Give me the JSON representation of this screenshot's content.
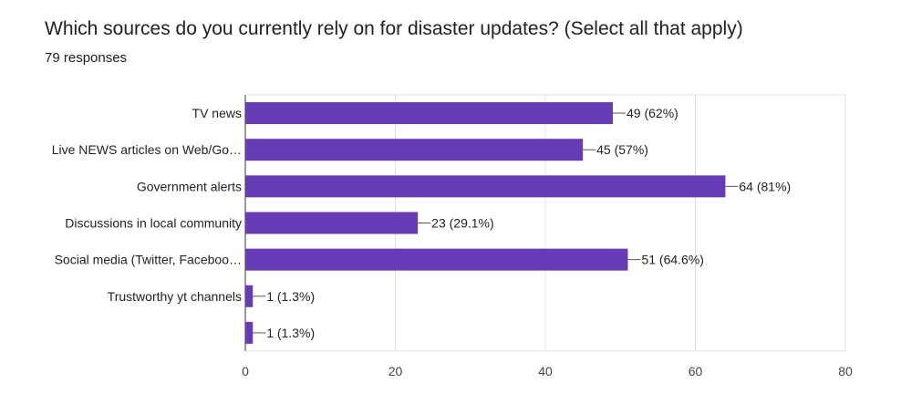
{
  "header": {
    "title": "Which sources do you currently rely on for disaster updates? (Select all that apply)",
    "responses": "79 responses"
  },
  "colors": {
    "bar": "#673ab7",
    "grid": "#e0e0e0",
    "axis": "#333333"
  },
  "chart_data": {
    "type": "bar",
    "orientation": "horizontal",
    "title": "Which sources do you currently rely on for disaster updates? (Select all that apply)",
    "categories": [
      "TV news",
      "Live NEWS articles on Web/Go…",
      "Government alerts",
      "Discussions in local community",
      "Social media (Twitter, Faceboo…",
      "Trustworthy yt channels",
      ""
    ],
    "values": [
      49,
      45,
      64,
      23,
      51,
      1,
      1
    ],
    "data_labels": [
      "49 (62%)",
      "45 (57%)",
      "64 (81%)",
      "23 (29.1%)",
      "51 (64.6%)",
      "1 (1.3%)",
      "1 (1.3%)"
    ],
    "xlim": [
      0,
      80
    ],
    "xticks": [
      0,
      20,
      40,
      60,
      80
    ],
    "xtick_labels": [
      "0",
      "20",
      "40",
      "60",
      "80"
    ],
    "grid": true
  }
}
